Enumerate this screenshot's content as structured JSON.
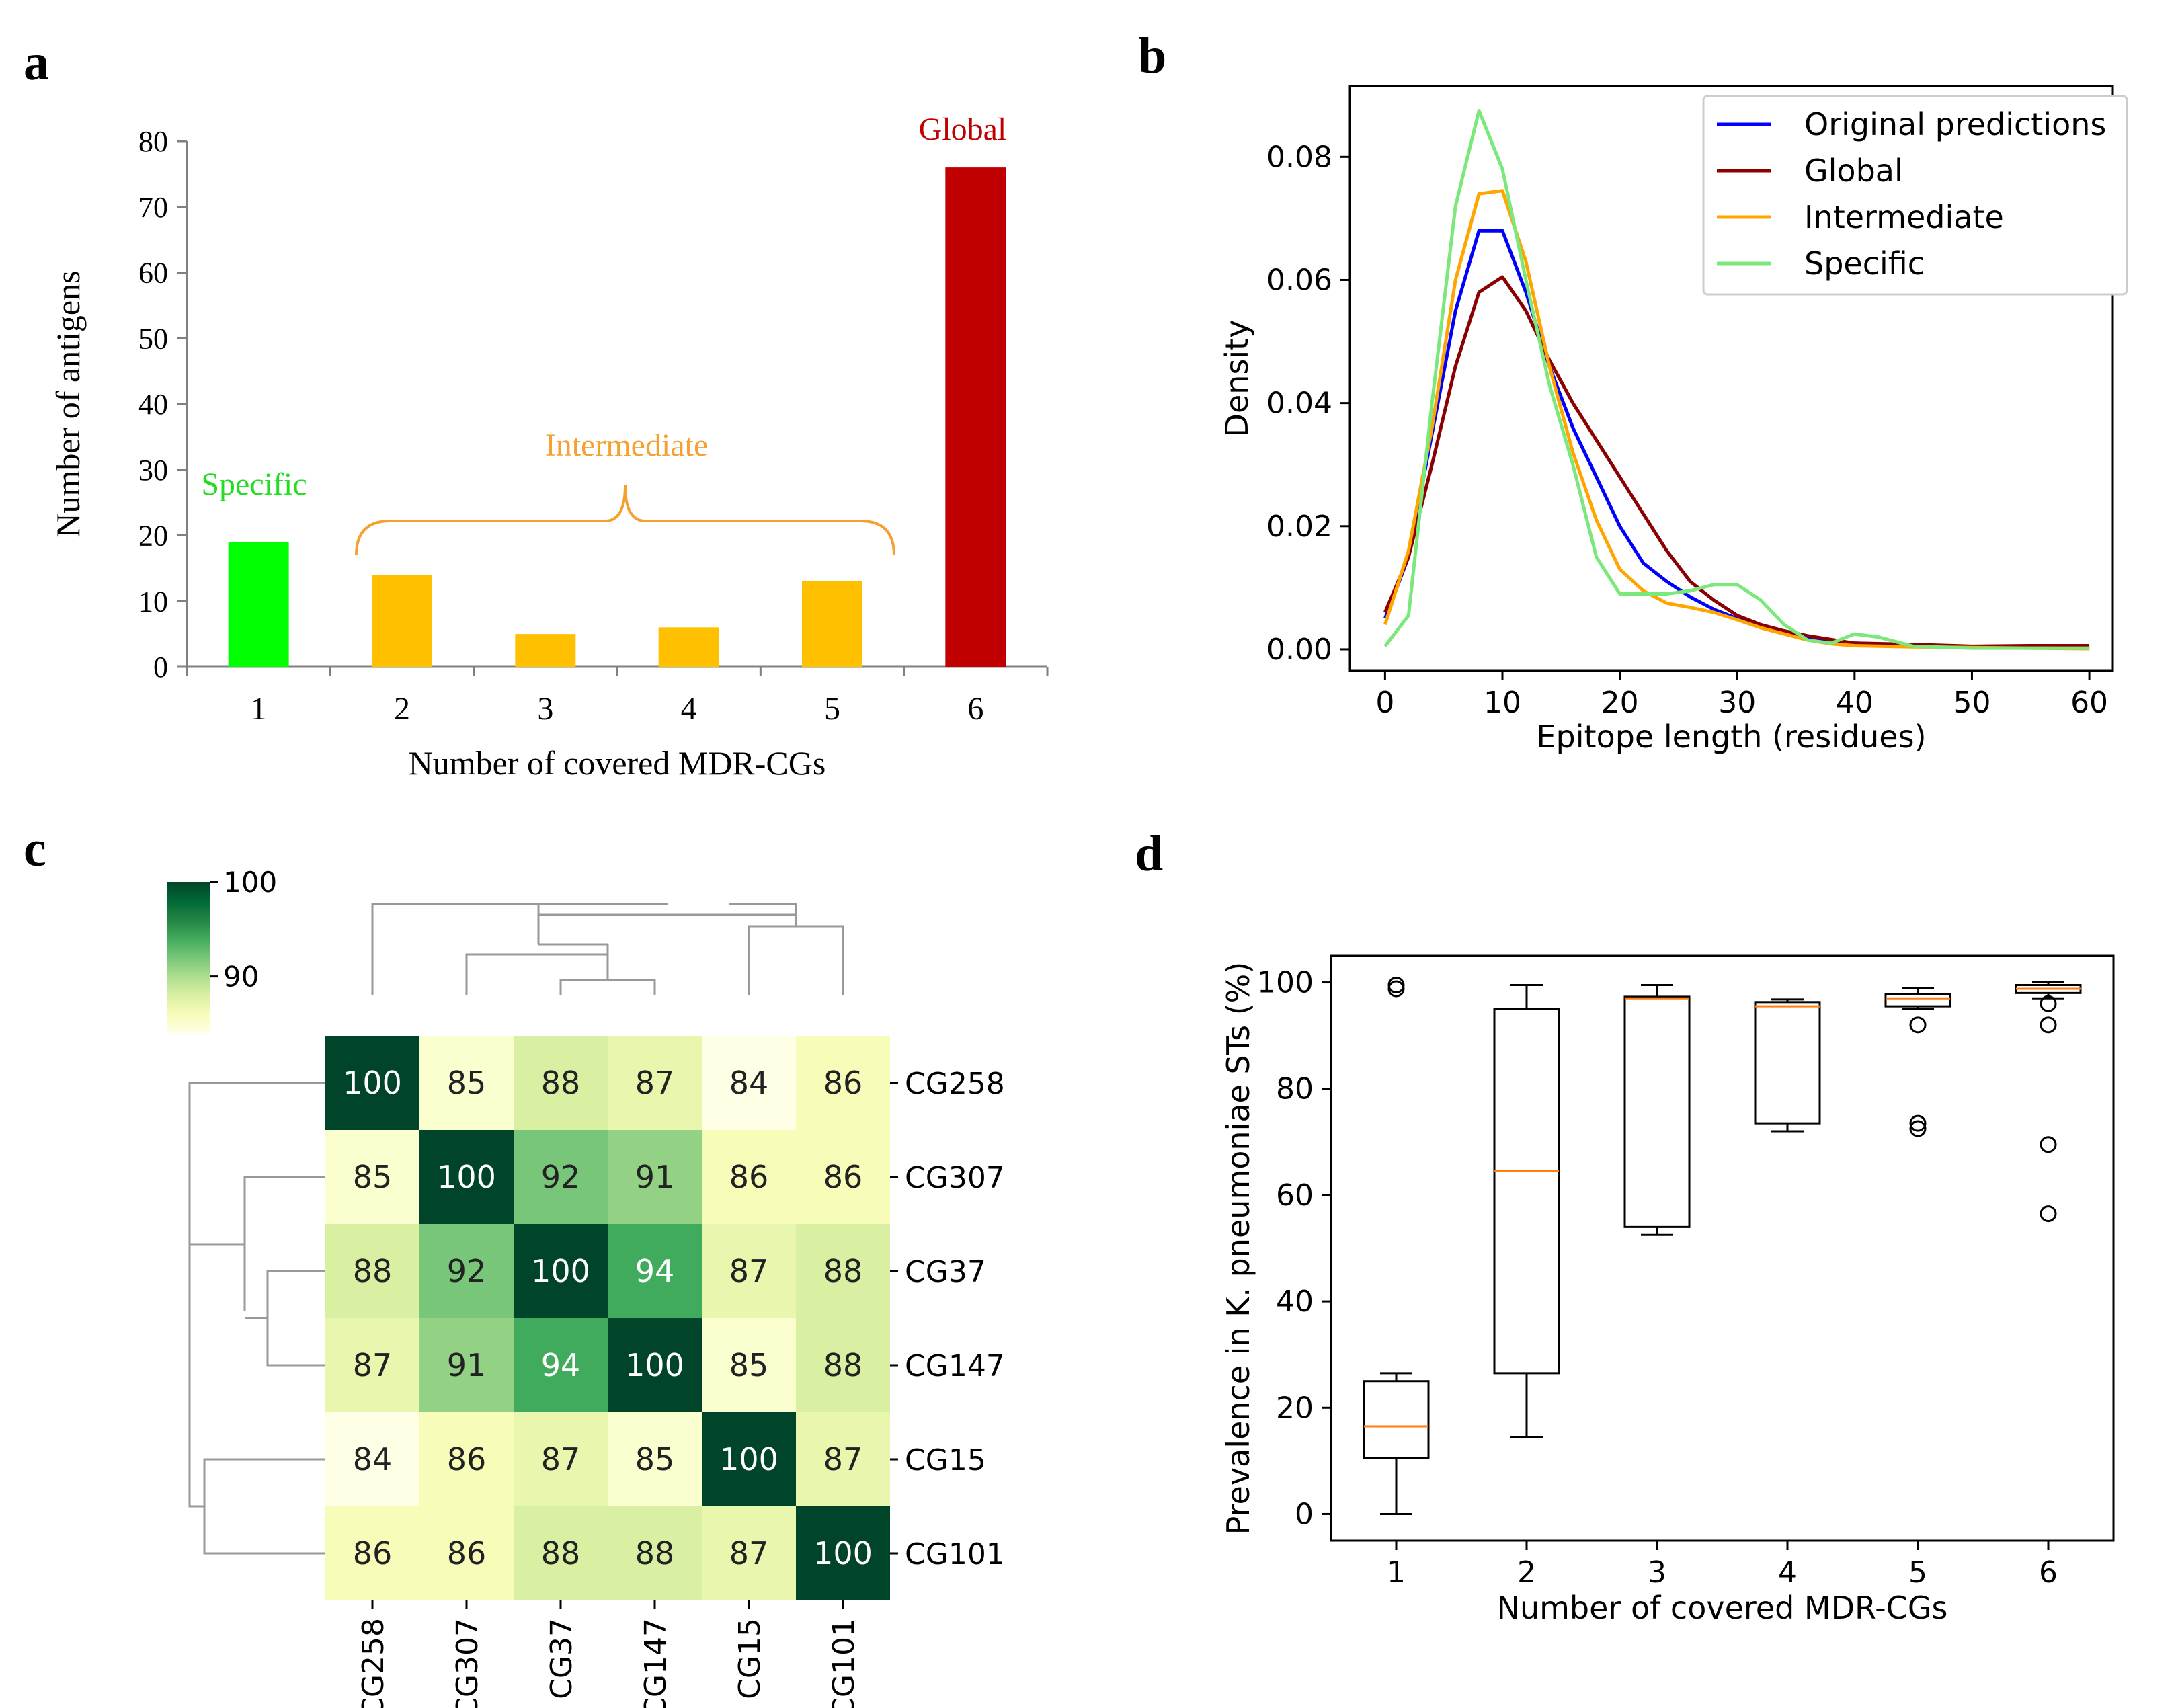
{
  "panels": {
    "a": {
      "letter": "a",
      "annotations": {
        "specific": {
          "text": "Specific",
          "color": "#22dd22"
        },
        "intermediate": {
          "text": "Intermediate",
          "color": "#f5a030"
        },
        "global": {
          "text": "Global",
          "color": "#c00000"
        }
      }
    },
    "b": {
      "letter": "b"
    },
    "c": {
      "letter": "c"
    },
    "d": {
      "letter": "d"
    }
  },
  "chart_data": [
    {
      "id": "a",
      "type": "bar",
      "title": "",
      "xlabel": "Number of covered MDR-CGs",
      "ylabel": "Number of antigens",
      "categories": [
        "1",
        "2",
        "3",
        "4",
        "5",
        "6"
      ],
      "values": [
        19,
        14,
        5,
        6,
        13,
        76
      ],
      "bar_colors": [
        "#00ff00",
        "#ffc000",
        "#ffc000",
        "#ffc000",
        "#ffc000",
        "#c00000"
      ],
      "ylim": [
        0,
        80
      ],
      "yticks": [
        0,
        10,
        20,
        30,
        40,
        50,
        60,
        70,
        80
      ],
      "ytick_labels": [
        "0",
        "10",
        "20",
        "30",
        "40",
        "50",
        "60",
        "70",
        "80"
      ]
    },
    {
      "id": "b",
      "type": "line",
      "title": "",
      "xlabel": "Epitope length (residues)",
      "ylabel": "Density",
      "xlim": [
        -3,
        62
      ],
      "ylim": [
        -0.0035,
        0.0915
      ],
      "xticks": [
        0,
        10,
        20,
        30,
        40,
        50,
        60
      ],
      "xtick_labels": [
        "0",
        "10",
        "20",
        "30",
        "40",
        "50",
        "60"
      ],
      "yticks": [
        0.0,
        0.02,
        0.04,
        0.06,
        0.08
      ],
      "ytick_labels": [
        "0.00",
        "0.02",
        "0.04",
        "0.06",
        "0.08"
      ],
      "legend_position": "top-right",
      "series": [
        {
          "name": "Original predictions",
          "color": "#0000ff",
          "x": [
            0,
            2,
            4,
            6,
            8,
            10,
            12,
            14,
            16,
            18,
            20,
            22,
            24,
            26,
            28,
            30,
            32,
            34,
            36,
            38,
            40,
            45,
            50,
            55,
            60
          ],
          "y": [
            0.005,
            0.015,
            0.035,
            0.055,
            0.068,
            0.068,
            0.058,
            0.046,
            0.036,
            0.028,
            0.02,
            0.014,
            0.011,
            0.0085,
            0.0065,
            0.005,
            0.0038,
            0.0028,
            0.002,
            0.0015,
            0.001,
            0.0007,
            0.0004,
            0.0003,
            0.0002
          ]
        },
        {
          "name": "Global",
          "color": "#8b0000",
          "x": [
            0,
            2,
            4,
            6,
            8,
            10,
            12,
            14,
            16,
            18,
            20,
            22,
            24,
            26,
            28,
            30,
            32,
            34,
            36,
            38,
            40,
            45,
            50,
            55,
            60
          ],
          "y": [
            0.006,
            0.015,
            0.03,
            0.046,
            0.058,
            0.0605,
            0.055,
            0.047,
            0.04,
            0.034,
            0.028,
            0.022,
            0.016,
            0.011,
            0.008,
            0.0055,
            0.004,
            0.003,
            0.0022,
            0.0016,
            0.001,
            0.0008,
            0.0005,
            0.0006,
            0.0006
          ]
        },
        {
          "name": "Intermediate",
          "color": "#ffa500",
          "x": [
            0,
            2,
            4,
            6,
            8,
            10,
            12,
            14,
            16,
            18,
            20,
            22,
            24,
            26,
            28,
            30,
            32,
            34,
            36,
            38,
            40,
            45,
            50,
            55,
            60
          ],
          "y": [
            0.004,
            0.016,
            0.036,
            0.06,
            0.074,
            0.0745,
            0.063,
            0.046,
            0.032,
            0.021,
            0.013,
            0.0095,
            0.0075,
            0.0068,
            0.006,
            0.0048,
            0.0035,
            0.0025,
            0.0015,
            0.0009,
            0.0006,
            0.0004,
            0.0003,
            0.0002,
            0.0001
          ]
        },
        {
          "name": "Specific",
          "color": "#7be87b",
          "x": [
            0,
            2,
            4,
            6,
            8,
            10,
            12,
            14,
            16,
            18,
            20,
            22,
            24,
            26,
            28,
            30,
            32,
            34,
            36,
            38,
            40,
            42,
            45,
            50,
            55,
            60
          ],
          "y": [
            0.0005,
            0.0055,
            0.04,
            0.072,
            0.0875,
            0.078,
            0.06,
            0.043,
            0.03,
            0.015,
            0.009,
            0.009,
            0.009,
            0.0095,
            0.0105,
            0.0105,
            0.008,
            0.004,
            0.0015,
            0.001,
            0.0025,
            0.002,
            0.0005,
            0.0002,
            0.0002,
            0.0002
          ]
        }
      ]
    },
    {
      "id": "c",
      "type": "heatmap",
      "title": "",
      "row_labels": [
        "CG258",
        "CG307",
        "CG37",
        "CG147",
        "CG15",
        "CG101"
      ],
      "col_labels": [
        "CG258",
        "CG307",
        "CG37",
        "CG147",
        "CG15",
        "CG101"
      ],
      "values": [
        [
          100,
          85,
          88,
          87,
          84,
          86
        ],
        [
          85,
          100,
          92,
          91,
          86,
          86
        ],
        [
          88,
          92,
          100,
          94,
          87,
          88
        ],
        [
          87,
          91,
          94,
          100,
          85,
          88
        ],
        [
          84,
          86,
          87,
          85,
          100,
          87
        ],
        [
          86,
          86,
          88,
          88,
          87,
          100
        ]
      ],
      "colorbar": {
        "min": 84,
        "max": 100,
        "ticks": [
          90,
          100
        ],
        "tick_labels": [
          "90",
          "100"
        ]
      },
      "colormap": [
        "#ffffe5",
        "#f7fcb9",
        "#d9f0a3",
        "#addd8e",
        "#78c679",
        "#41ab5d",
        "#238443",
        "#006837",
        "#004529"
      ],
      "dendrogram": "row and column clustering"
    },
    {
      "id": "d",
      "type": "box",
      "title": "",
      "xlabel": "Number of covered MDR-CGs",
      "ylabel": "Prevalence in K. pneumoniae STs (%)",
      "xlim": [
        0.5,
        6.5
      ],
      "ylim": [
        -5,
        105
      ],
      "yticks": [
        0,
        20,
        40,
        60,
        80,
        100
      ],
      "ytick_labels": [
        "0",
        "20",
        "40",
        "60",
        "80",
        "100"
      ],
      "categories": [
        "1",
        "2",
        "3",
        "4",
        "5",
        "6"
      ],
      "median_color": "#ff7f0e",
      "boxes": [
        {
          "whislo": 0,
          "q1": 10.5,
          "median": 16.5,
          "q3": 25,
          "whishi": 26.5,
          "fliers": [
            98.8,
            99.5
          ]
        },
        {
          "whislo": 14.5,
          "q1": 26.5,
          "median": 64.5,
          "q3": 95,
          "whishi": 99.5,
          "fliers": []
        },
        {
          "whislo": 52.5,
          "q1": 54,
          "median": 97,
          "q3": 97.3,
          "whishi": 99.5,
          "fliers": []
        },
        {
          "whislo": 72,
          "q1": 73.5,
          "median": 95.5,
          "q3": 96.3,
          "whishi": 96.8,
          "fliers": []
        },
        {
          "whislo": 95,
          "q1": 95.5,
          "median": 97,
          "q3": 97.8,
          "whishi": 99,
          "fliers": [
            92,
            73.5,
            72.5
          ]
        },
        {
          "whislo": 97,
          "q1": 98,
          "median": 98.8,
          "q3": 99.5,
          "whishi": 100,
          "fliers": [
            96,
            92,
            69.5,
            56.5
          ]
        }
      ]
    }
  ]
}
